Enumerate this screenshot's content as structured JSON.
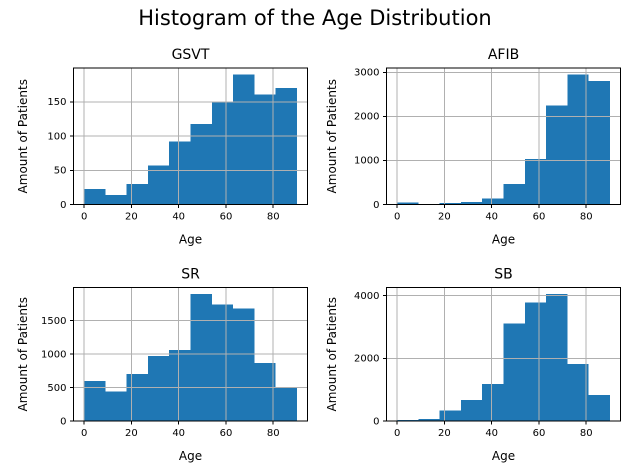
{
  "figure": {
    "suptitle": "Histogram of the Age Distribution",
    "bar_color": "#1f77b4",
    "grid_color": "#b0b0b0",
    "spine_color": "#000000",
    "text_color": "#000000",
    "background_color": "#ffffff"
  },
  "chart_data": [
    {
      "type": "bar",
      "title": "GSVT",
      "xlabel": "Age",
      "ylabel": "Amount of Patients",
      "bin_edges": [
        0,
        9,
        18,
        27,
        36,
        45,
        54,
        63,
        72,
        81,
        90
      ],
      "values": [
        23,
        14,
        30,
        57,
        92,
        118,
        150,
        190,
        161,
        170
      ],
      "xticks": [
        0,
        20,
        40,
        60,
        80
      ],
      "yticks": [
        0,
        50,
        100,
        150
      ],
      "xlim": [
        -4.5,
        94.5
      ],
      "ylim": [
        0,
        199.5
      ],
      "grid": true
    },
    {
      "type": "bar",
      "title": "AFIB",
      "xlabel": "Age",
      "ylabel": "Amount of Patients",
      "bin_edges": [
        0,
        9,
        18,
        27,
        36,
        45,
        54,
        63,
        72,
        81,
        90
      ],
      "values": [
        40,
        15,
        30,
        60,
        140,
        470,
        1030,
        2250,
        2950,
        2800
      ],
      "xticks": [
        0,
        20,
        40,
        60,
        80
      ],
      "yticks": [
        0,
        1000,
        2000,
        3000
      ],
      "xlim": [
        -4.5,
        94.5
      ],
      "ylim": [
        0,
        3097.5
      ],
      "grid": true
    },
    {
      "type": "bar",
      "title": "SR",
      "xlabel": "Age",
      "ylabel": "Amount of Patients",
      "bin_edges": [
        0,
        9,
        18,
        27,
        36,
        45,
        54,
        63,
        72,
        81,
        90
      ],
      "values": [
        600,
        440,
        700,
        975,
        1060,
        1900,
        1740,
        1680,
        870,
        510
      ],
      "xticks": [
        0,
        20,
        40,
        60,
        80
      ],
      "yticks": [
        0,
        500,
        1000,
        1500
      ],
      "xlim": [
        -4.5,
        94.5
      ],
      "ylim": [
        0,
        1995
      ],
      "grid": true
    },
    {
      "type": "bar",
      "title": "SB",
      "xlabel": "Age",
      "ylabel": "Amount of Patients",
      "bin_edges": [
        0,
        9,
        18,
        27,
        36,
        45,
        54,
        63,
        72,
        81,
        90
      ],
      "values": [
        30,
        65,
        330,
        670,
        1180,
        3110,
        3780,
        4060,
        1820,
        830
      ],
      "xticks": [
        0,
        20,
        40,
        60,
        80
      ],
      "yticks": [
        0,
        2000,
        4000
      ],
      "xlim": [
        -4.5,
        94.5
      ],
      "ylim": [
        0,
        4263
      ],
      "grid": true
    }
  ]
}
